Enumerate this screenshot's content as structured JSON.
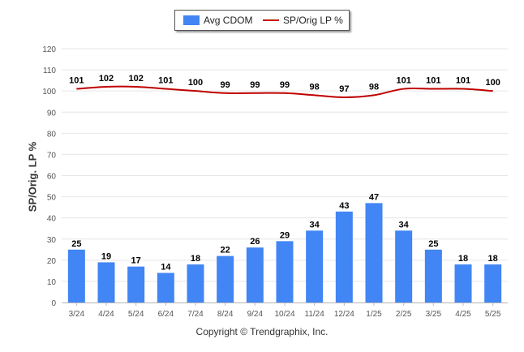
{
  "legend": {
    "bar_label": "Avg CDOM",
    "line_label": "SP/Orig LP %"
  },
  "copyright": "Copyright © Trendgraphix, Inc.",
  "colors": {
    "bar": "#4285f4",
    "line": "#c00000",
    "grid": "#e6e6e6",
    "axis_text": "#555555",
    "label_text": "#000000"
  },
  "chart_data": {
    "type": "bar",
    "categories": [
      "3/24",
      "4/24",
      "5/24",
      "6/24",
      "7/24",
      "8/24",
      "9/24",
      "10/24",
      "11/24",
      "12/24",
      "1/25",
      "2/25",
      "3/25",
      "4/25",
      "5/25"
    ],
    "series": [
      {
        "name": "Avg CDOM",
        "type": "bar",
        "values": [
          25,
          19,
          17,
          14,
          18,
          22,
          26,
          29,
          34,
          43,
          47,
          34,
          25,
          18,
          18
        ]
      },
      {
        "name": "SP/Orig LP %",
        "type": "line",
        "values": [
          101,
          102,
          102,
          101,
          100,
          99,
          99,
          99,
          98,
          97,
          98,
          101,
          101,
          101,
          100
        ]
      }
    ],
    "ylabel": "SP/Orig. LP %",
    "ylim": [
      0,
      120
    ],
    "yticks": [
      0,
      10,
      20,
      30,
      40,
      50,
      60,
      70,
      80,
      90,
      100,
      110,
      120
    ],
    "grid": true,
    "legend_position": "top-center"
  }
}
